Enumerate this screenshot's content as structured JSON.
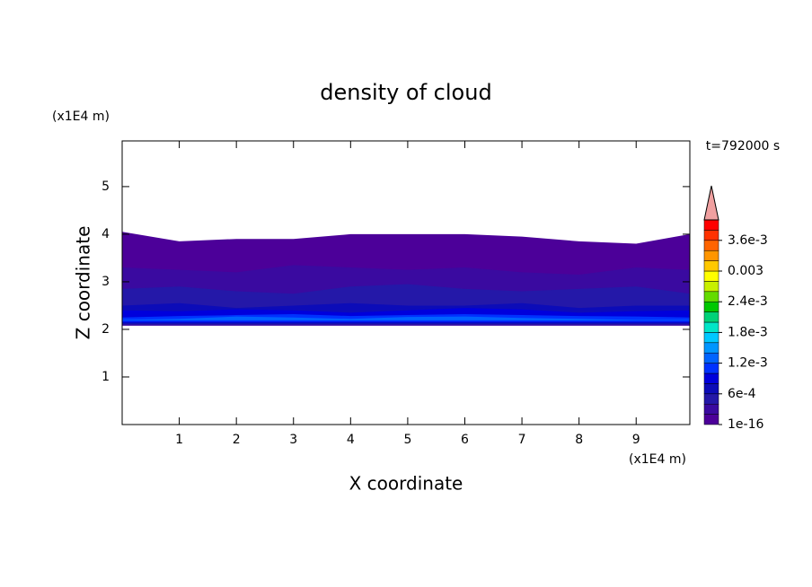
{
  "chart_data": {
    "type": "contour",
    "title": "density of cloud",
    "x_label": "X coordinate",
    "y_label": "Z coordinate",
    "x_unit": "(x1E4 m)",
    "y_unit": "(x1E4 m)",
    "time_label": "t=792000 s",
    "xlim": [
      0,
      9.94
    ],
    "ylim": [
      0,
      5.96
    ],
    "xticks": [
      1,
      2,
      3,
      4,
      5,
      6,
      7,
      8,
      9
    ],
    "yticks": [
      1,
      2,
      3,
      4,
      5
    ],
    "x": [
      0,
      1,
      2,
      3,
      4,
      5,
      6,
      7,
      8,
      9,
      9.94
    ],
    "bands": [
      {
        "level": 1e-16,
        "bottom": [
          2.08,
          2.08,
          2.08,
          2.08,
          2.08,
          2.08,
          2.08,
          2.08,
          2.08,
          2.08,
          2.08
        ],
        "top": [
          4.05,
          3.85,
          3.9,
          3.9,
          4.0,
          4.0,
          4.0,
          3.95,
          3.85,
          3.8,
          4.0
        ]
      },
      {
        "level": 0.0002,
        "bottom": [
          2.08,
          2.08,
          2.08,
          2.08,
          2.08,
          2.08,
          2.08,
          2.08,
          2.08,
          2.08,
          2.08
        ],
        "top": [
          3.3,
          3.25,
          3.2,
          3.35,
          3.3,
          3.25,
          3.3,
          3.2,
          3.15,
          3.3,
          3.25
        ]
      },
      {
        "level": 0.0004,
        "bottom": [
          2.1,
          2.1,
          2.1,
          2.1,
          2.1,
          2.1,
          2.1,
          2.1,
          2.1,
          2.1,
          2.1
        ],
        "top": [
          2.85,
          2.9,
          2.8,
          2.75,
          2.9,
          2.95,
          2.85,
          2.8,
          2.85,
          2.9,
          2.75
        ]
      },
      {
        "level": 0.0006,
        "bottom": [
          2.12,
          2.12,
          2.12,
          2.12,
          2.12,
          2.12,
          2.12,
          2.12,
          2.12,
          2.12,
          2.12
        ],
        "top": [
          2.5,
          2.55,
          2.45,
          2.5,
          2.55,
          2.5,
          2.5,
          2.55,
          2.45,
          2.5,
          2.5
        ]
      },
      {
        "level": 0.0008,
        "bottom": [
          2.14,
          2.14,
          2.14,
          2.14,
          2.14,
          2.14,
          2.14,
          2.14,
          2.14,
          2.14,
          2.14
        ],
        "top": [
          2.4,
          2.38,
          2.42,
          2.4,
          2.35,
          2.4,
          2.45,
          2.42,
          2.35,
          2.38,
          2.4
        ]
      },
      {
        "level": 0.001,
        "bottom": [
          2.16,
          2.16,
          2.16,
          2.16,
          2.16,
          2.16,
          2.16,
          2.16,
          2.16,
          2.16,
          2.16
        ],
        "top": [
          2.25,
          2.28,
          2.3,
          2.32,
          2.28,
          2.3,
          2.32,
          2.3,
          2.28,
          2.27,
          2.25
        ]
      },
      {
        "level": 0.0012,
        "bottom": [
          2.19,
          2.19,
          2.19,
          2.19,
          2.19,
          2.19,
          2.19,
          2.19,
          2.19,
          2.19,
          2.19
        ],
        "top": [
          2.2,
          2.22,
          2.27,
          2.25,
          2.22,
          2.26,
          2.27,
          2.24,
          2.22,
          2.2,
          2.2
        ]
      }
    ],
    "colorbar": {
      "levels": [
        1e-16,
        0.0002,
        0.0004,
        0.0006,
        0.0008,
        0.001,
        0.0012,
        0.0014,
        0.0016,
        0.0018,
        0.002,
        0.0022,
        0.0024,
        0.0026,
        0.0028,
        0.003,
        0.0032,
        0.0034,
        0.0036,
        0.0038,
        0.004
      ],
      "colors": [
        "#4c0099",
        "#3a0aa0",
        "#2418a8",
        "#0c0cb8",
        "#0000dc",
        "#0032ff",
        "#0064ff",
        "#0096ff",
        "#00c8ff",
        "#00e6c8",
        "#00d278",
        "#00c800",
        "#64dc00",
        "#c8f000",
        "#ffff00",
        "#ffc800",
        "#ff9600",
        "#ff6400",
        "#ff3200",
        "#ff0000"
      ],
      "extend_color": "#f0a0a0",
      "ticks": [
        {
          "value": 1e-16,
          "label": "1e-16"
        },
        {
          "value": 0.0006,
          "label": "6e-4"
        },
        {
          "value": 0.0012,
          "label": "1.2e-3"
        },
        {
          "value": 0.0018,
          "label": "1.8e-3"
        },
        {
          "value": 0.0024,
          "label": "2.4e-3"
        },
        {
          "value": 0.003,
          "label": "0.003"
        },
        {
          "value": 0.0036,
          "label": "3.6e-3"
        }
      ]
    }
  }
}
